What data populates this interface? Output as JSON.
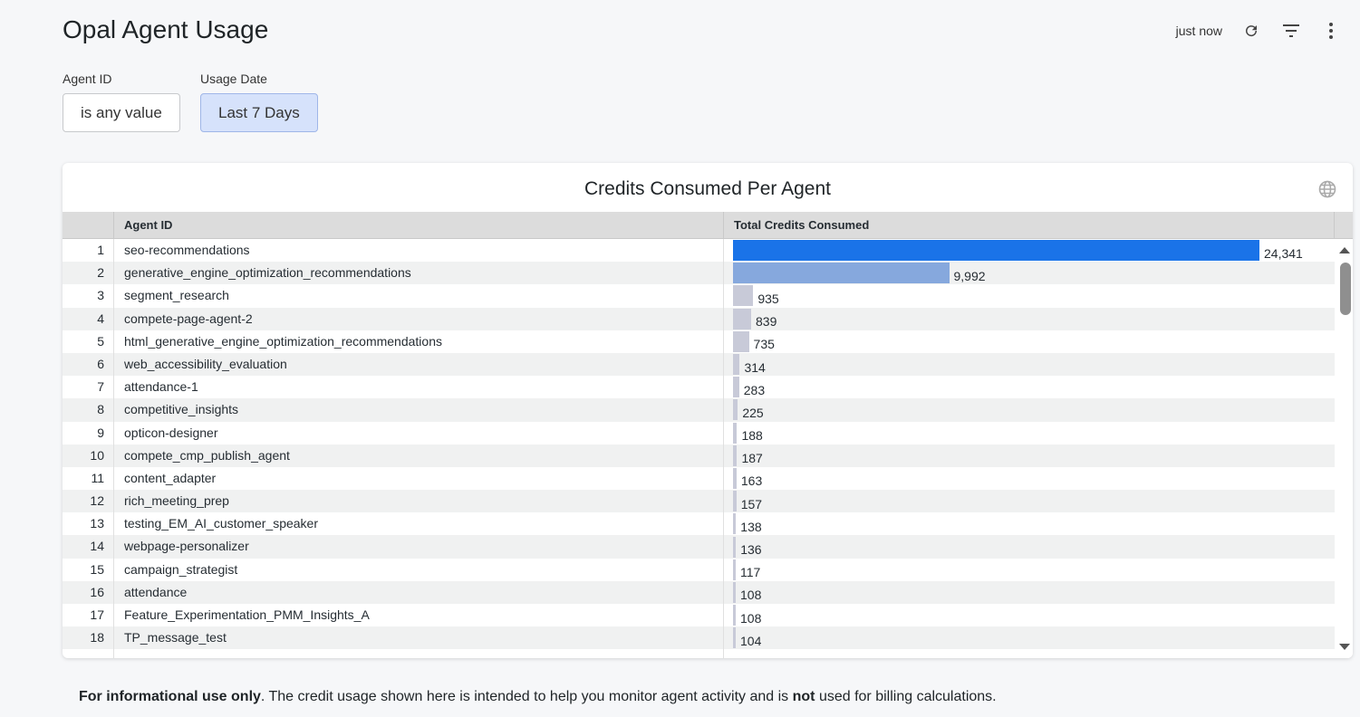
{
  "header": {
    "title": "Opal Agent Usage",
    "last_updated": "just now"
  },
  "filters": [
    {
      "label": "Agent ID",
      "value": "is any value",
      "active": false
    },
    {
      "label": "Usage Date",
      "value": "Last 7 Days",
      "active": true
    }
  ],
  "card": {
    "title": "Credits Consumed Per Agent",
    "columns": [
      "Agent ID",
      "Total Credits Consumed"
    ]
  },
  "colors": {
    "top_bar": "#1a73e8",
    "second_bar": "#86a8dd",
    "other_bar": "#c8cad8"
  },
  "rows": [
    {
      "n": "1",
      "agent": "seo-recommendations",
      "credits": 24341,
      "label": "24,341"
    },
    {
      "n": "2",
      "agent": "generative_engine_optimization_recommendations",
      "credits": 9992,
      "label": "9,992"
    },
    {
      "n": "3",
      "agent": "segment_research",
      "credits": 935,
      "label": "935"
    },
    {
      "n": "4",
      "agent": "compete-page-agent-2",
      "credits": 839,
      "label": "839"
    },
    {
      "n": "5",
      "agent": "html_generative_engine_optimization_recommendations",
      "credits": 735,
      "label": "735"
    },
    {
      "n": "6",
      "agent": "web_accessibility_evaluation",
      "credits": 314,
      "label": "314"
    },
    {
      "n": "7",
      "agent": "attendance-1",
      "credits": 283,
      "label": "283"
    },
    {
      "n": "8",
      "agent": "competitive_insights",
      "credits": 225,
      "label": "225"
    },
    {
      "n": "9",
      "agent": "opticon-designer",
      "credits": 188,
      "label": "188"
    },
    {
      "n": "10",
      "agent": "compete_cmp_publish_agent",
      "credits": 187,
      "label": "187"
    },
    {
      "n": "11",
      "agent": "content_adapter",
      "credits": 163,
      "label": "163"
    },
    {
      "n": "12",
      "agent": "rich_meeting_prep",
      "credits": 157,
      "label": "157"
    },
    {
      "n": "13",
      "agent": "testing_EM_AI_customer_speaker",
      "credits": 138,
      "label": "138"
    },
    {
      "n": "14",
      "agent": "webpage-personalizer",
      "credits": 136,
      "label": "136"
    },
    {
      "n": "15",
      "agent": "campaign_strategist",
      "credits": 117,
      "label": "117"
    },
    {
      "n": "16",
      "agent": "attendance",
      "credits": 108,
      "label": "108"
    },
    {
      "n": "17",
      "agent": "Feature_Experimentation_PMM_Insights_A",
      "credits": 108,
      "label": "108"
    },
    {
      "n": "18",
      "agent": "TP_message_test",
      "credits": 104,
      "label": "104"
    }
  ],
  "footer": {
    "bold1": "For informational use only",
    "text1": ". The credit usage shown here is intended to help you monitor agent activity and is ",
    "bold2": "not",
    "text2": " used for billing calculations."
  }
}
